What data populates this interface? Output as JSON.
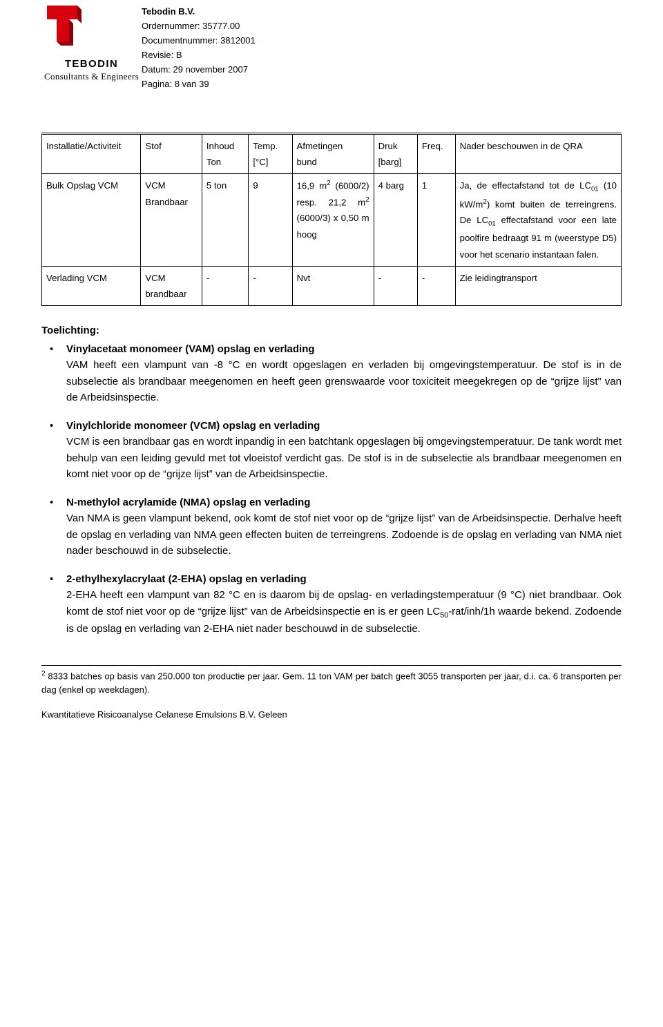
{
  "header": {
    "company": "Tebodin B.V.",
    "lines": {
      "ordernummer": "Ordernummer: 35777.00",
      "documentnummer": "Documentnummer: 3812001",
      "revisie": "Revisie: B",
      "datum": "Datum: 29 november 2007",
      "pagina": "Pagina: 8 van 39"
    },
    "logo": {
      "word": "TEBODIN",
      "tagline": "Consultants & Engineers",
      "primary_color": "#d6000f",
      "text_color": "#000000"
    }
  },
  "table": {
    "headers": {
      "install": "Installatie/Activiteit",
      "stof": "Stof",
      "inhoud_top": "Inhoud",
      "inhoud_bot": "Ton",
      "temp_top": "Temp.",
      "temp_bot": "[°C]",
      "afm_top": "Afmetingen",
      "afm_bot": "bund",
      "druk_top": "Druk",
      "druk_bot": "[barg]",
      "freq": "Freq.",
      "nader": "Nader beschouwen in de QRA"
    },
    "rows": [
      {
        "install": "Bulk Opslag VCM",
        "stof": "VCM Brandbaar",
        "inhoud": "5 ton",
        "temp": "9",
        "afm_html": "16,9 m<sup class='sq'>2</sup> (6000/2) resp. 21,2 m<sup class='sq'>2</sup> (6000/3) x 0,50 m hoog",
        "druk": "4 barg",
        "freq": "1",
        "nader_html": "Ja, de effectafstand tot de LC<sub>01</sub> (10 kW/m<sup class='sq'>2</sup>) komt buiten de terreingrens. De LC<sub>01</sub> effectafstand voor een late poolfire bedraagt 91 m (weerstype D5) voor het scenario instantaan falen."
      },
      {
        "install": "Verlading VCM",
        "stof": "VCM brandbaar",
        "inhoud": "-",
        "temp": "-",
        "afm_html": "Nvt",
        "druk": "-",
        "freq": "-",
        "nader_html": "Zie leidingtransport"
      }
    ]
  },
  "toelichting": {
    "title": "Toelichting:",
    "items": [
      {
        "title": "Vinylacetaat monomeer (VAM) opslag en verlading",
        "body_html": "VAM heeft een vlampunt van -8 °C en wordt opgeslagen en verladen bij omgevingstemperatuur. De stof is in de subselectie als brandbaar meegenomen en heeft geen grenswaarde voor toxiciteit meegekregen op de “grijze lijst” van de Arbeidsinspectie."
      },
      {
        "title": "Vinylchloride monomeer (VCM) opslag en verlading",
        "body_html": "VCM is een brandbaar gas en wordt inpandig in een batchtank opgeslagen bij omgevingstemperatuur. De tank wordt met behulp van een leiding gevuld met tot vloeistof verdicht gas. De stof is in de subselectie als brandbaar meegenomen en komt niet voor op de “grijze lijst” van de Arbeidsinspectie."
      },
      {
        "title": "N-methylol acrylamide (NMA) opslag en verlading",
        "body_html": "Van NMA is geen vlampunt bekend, ook komt de stof niet voor op de “grijze lijst” van de Arbeidsinspectie. Derhalve heeft de opslag en verlading van NMA geen effecten buiten de terreingrens. Zodoende is de opslag en verlading van NMA niet nader beschouwd in de subselectie."
      },
      {
        "title": "2-ethylhexylacrylaat (2-EHA) opslag en verlading",
        "body_html": "2-EHA heeft een vlampunt van 82 °C en is daarom bij de opslag- en verladingstemperatuur (9 °C) niet brandbaar. Ook komt de stof niet voor op de “grijze lijst” van de Arbeidsinspectie en is er geen LC<sub>50</sub>-rat/inh/1h waarde bekend. Zodoende is de opslag en verlading van 2-EHA niet nader beschouwd in de subselectie."
      }
    ]
  },
  "footnote": {
    "mark": "2",
    "text": "8333 batches op basis van 250.000 ton productie per jaar. Gem. 11 ton VAM per batch geeft 3055 transporten per jaar, d.i. ca. 6 transporten per dag (enkel op weekdagen)."
  },
  "doc_title": "Kwantitatieve Risicoanalyse Celanese Emulsions B.V. Geleen"
}
